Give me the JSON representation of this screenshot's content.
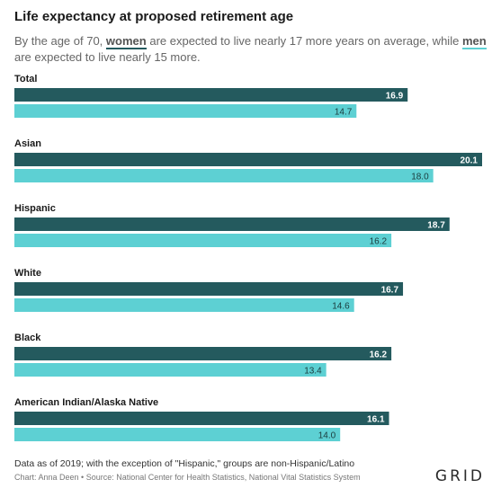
{
  "header": {
    "title": "Life expectancy at proposed retirement age",
    "subtitle_part1": "By the age of 70,",
    "subtitle_women": "women",
    "subtitle_part2": "are expected to live nearly 17 more years on average, while",
    "subtitle_men": "men",
    "subtitle_part3": "are expected to live nearly 15 more."
  },
  "colors": {
    "women": "#245a5e",
    "men": "#5dd0d3"
  },
  "chart_data": {
    "type": "bar",
    "orientation": "horizontal",
    "categories": [
      "Total",
      "Asian",
      "Hispanic",
      "White",
      "Black",
      "American Indian/Alaska Native"
    ],
    "series": [
      {
        "name": "women",
        "values": [
          16.9,
          20.1,
          18.7,
          16.7,
          16.2,
          16.1
        ]
      },
      {
        "name": "men",
        "values": [
          14.7,
          18.0,
          16.2,
          14.6,
          13.4,
          14.0
        ]
      }
    ],
    "xlim": [
      0,
      20.1
    ],
    "grid": false,
    "data_labels": true
  },
  "footer": {
    "note": "Data as of 2019; with the exception of \"Hispanic,\" groups are non-Hispanic/Latino",
    "source": "Chart: Anna Deen • Source: National Center for Health Statistics, National Vital Statistics System",
    "logo": "GRID"
  }
}
